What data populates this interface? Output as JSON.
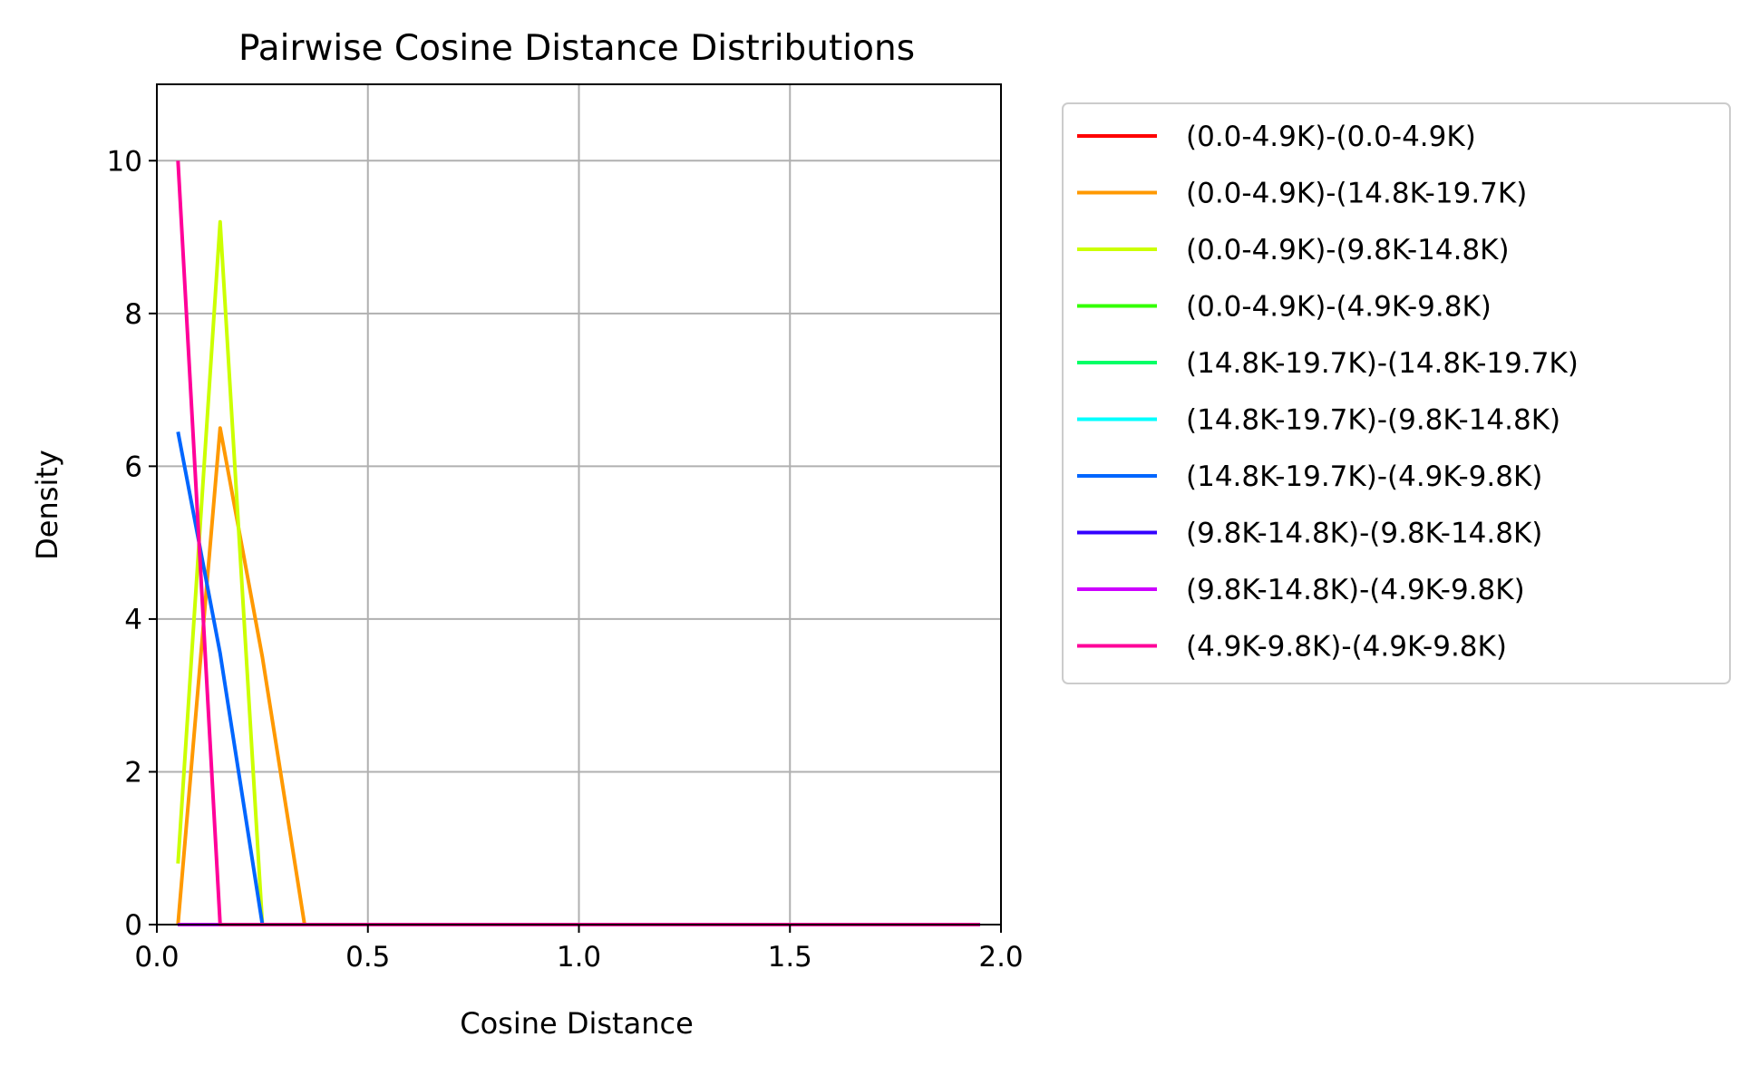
{
  "chart_data": {
    "type": "line",
    "title": "Pairwise Cosine Distance Distributions",
    "xlabel": "Cosine Distance",
    "ylabel": "Density",
    "xlim": [
      0.0,
      2.0
    ],
    "ylim": [
      0,
      11
    ],
    "xticks": [
      0.0,
      0.5,
      1.0,
      1.5,
      2.0
    ],
    "xtick_labels": [
      "0.0",
      "0.5",
      "1.0",
      "1.5",
      "2.0"
    ],
    "yticks": [
      0,
      2,
      4,
      6,
      8,
      10
    ],
    "ytick_labels": [
      "0",
      "2",
      "4",
      "6",
      "8",
      "10"
    ],
    "grid": true,
    "legend": "outside-right",
    "x": [
      0.05,
      0.15,
      0.25,
      0.35,
      0.45,
      0.55,
      0.65,
      0.75,
      0.85,
      0.95,
      1.05,
      1.15,
      1.25,
      1.35,
      1.45,
      1.55,
      1.65,
      1.75,
      1.85,
      1.95
    ],
    "series": [
      {
        "name": "(0.0-4.9K)-(0.0-4.9K)",
        "color": "#ff0000",
        "values": [
          0,
          0,
          0,
          0,
          0,
          0,
          0,
          0,
          0,
          0,
          0,
          0,
          0,
          0,
          0,
          0,
          0,
          0,
          0,
          0
        ]
      },
      {
        "name": "(0.0-4.9K)-(14.8K-19.7K)",
        "color": "#ff9900",
        "values": [
          0,
          6.5,
          3.5,
          0,
          0,
          0,
          0,
          0,
          0,
          0,
          0,
          0,
          0,
          0,
          0,
          0,
          0,
          0,
          0,
          0
        ]
      },
      {
        "name": "(0.0-4.9K)-(9.8K-14.8K)",
        "color": "#ccff00",
        "values": [
          0.8,
          9.2,
          0,
          0,
          0,
          0,
          0,
          0,
          0,
          0,
          0,
          0,
          0,
          0,
          0,
          0,
          0,
          0,
          0,
          0
        ]
      },
      {
        "name": "(0.0-4.9K)-(4.9K-9.8K)",
        "color": "#33ff00",
        "values": [
          0,
          0,
          0,
          0,
          0,
          0,
          0,
          0,
          0,
          0,
          0,
          0,
          0,
          0,
          0,
          0,
          0,
          0,
          0,
          0
        ]
      },
      {
        "name": "(14.8K-19.7K)-(14.8K-19.7K)",
        "color": "#00ff66",
        "values": [
          0,
          0,
          0,
          0,
          0,
          0,
          0,
          0,
          0,
          0,
          0,
          0,
          0,
          0,
          0,
          0,
          0,
          0,
          0,
          0
        ]
      },
      {
        "name": "(14.8K-19.7K)-(9.8K-14.8K)",
        "color": "#00ffff",
        "values": [
          0,
          0,
          0,
          0,
          0,
          0,
          0,
          0,
          0,
          0,
          0,
          0,
          0,
          0,
          0,
          0,
          0,
          0,
          0,
          0
        ]
      },
      {
        "name": "(14.8K-19.7K)-(4.9K-9.8K)",
        "color": "#0066ff",
        "values": [
          6.45,
          3.55,
          0,
          0,
          0,
          0,
          0,
          0,
          0,
          0,
          0,
          0,
          0,
          0,
          0,
          0,
          0,
          0,
          0,
          0
        ]
      },
      {
        "name": "(9.8K-14.8K)-(9.8K-14.8K)",
        "color": "#3300ff",
        "values": [
          0,
          0,
          0,
          0,
          0,
          0,
          0,
          0,
          0,
          0,
          0,
          0,
          0,
          0,
          0,
          0,
          0,
          0,
          0,
          0
        ]
      },
      {
        "name": "(9.8K-14.8K)-(4.9K-9.8K)",
        "color": "#cc00ff",
        "values": [
          0,
          0,
          0,
          0,
          0,
          0,
          0,
          0,
          0,
          0,
          0,
          0,
          0,
          0,
          0,
          0,
          0,
          0,
          0,
          0
        ]
      },
      {
        "name": "(4.9K-9.8K)-(4.9K-9.8K)",
        "color": "#ff0099",
        "values": [
          10,
          0,
          0,
          0,
          0,
          0,
          0,
          0,
          0,
          0,
          0,
          0,
          0,
          0,
          0,
          0,
          0,
          0,
          0,
          0
        ]
      }
    ]
  }
}
